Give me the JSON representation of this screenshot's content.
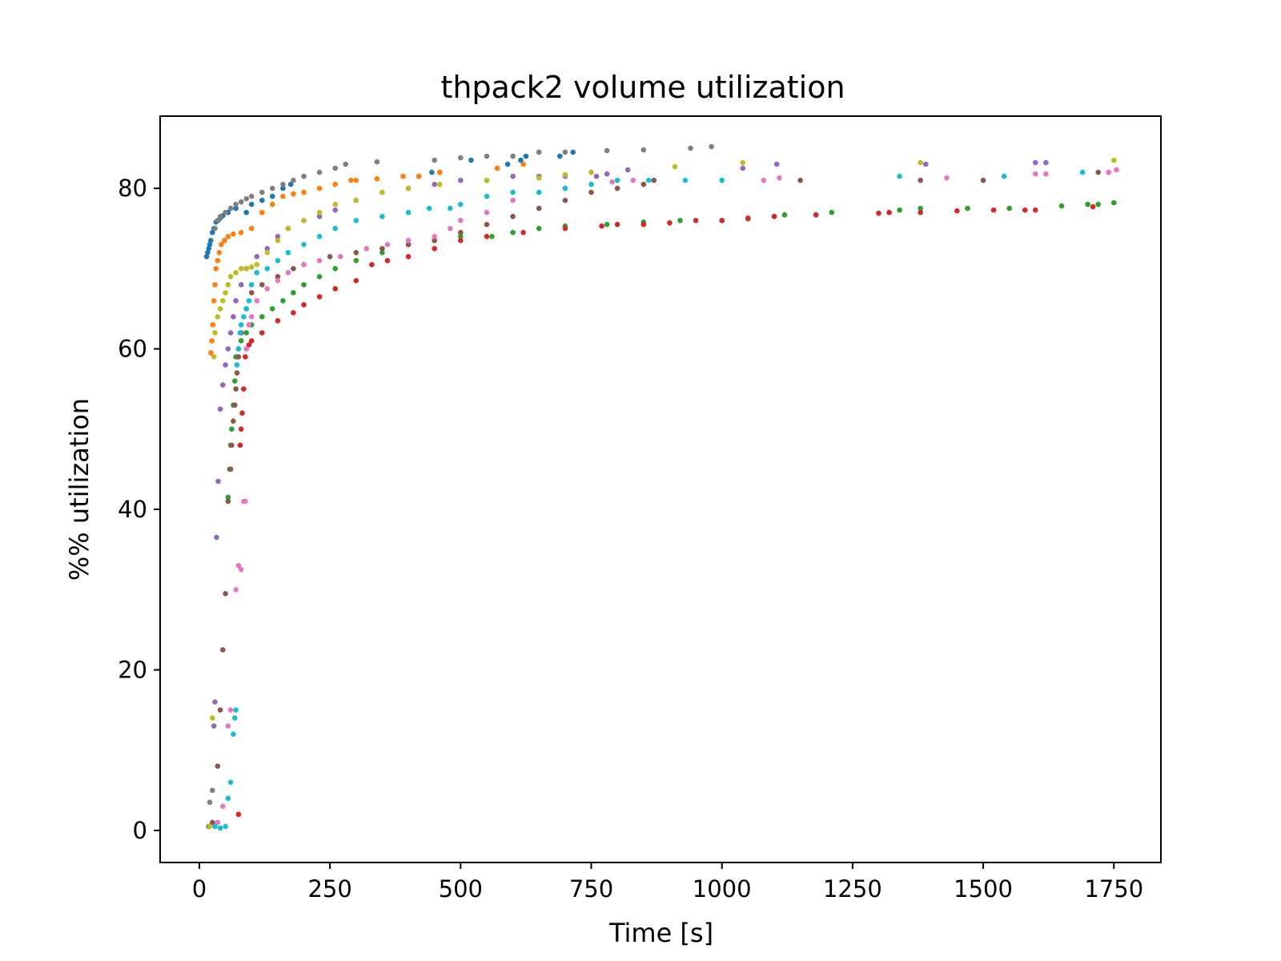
{
  "chart_data": {
    "type": "scatter",
    "title": "thpack2 volume utilization",
    "xlabel": "Time [s]",
    "ylabel": "%% utilization",
    "xlim": [
      -75,
      1840
    ],
    "ylim": [
      -4,
      89
    ],
    "xticks": [
      0,
      250,
      500,
      750,
      1000,
      1250,
      1500,
      1750
    ],
    "yticks": [
      0,
      20,
      40,
      60,
      80
    ],
    "xtick_labels": [
      "0",
      "250",
      "500",
      "750",
      "1000",
      "1250",
      "1500",
      "1750"
    ],
    "ytick_labels": [
      "0",
      "20",
      "40",
      "60",
      "80"
    ],
    "grid": false,
    "legend": "none",
    "series": [
      {
        "color": "#1f77b4",
        "x": [
          14,
          16,
          18,
          20,
          22,
          25,
          28,
          32,
          36,
          40,
          45,
          55,
          70,
          90,
          100,
          120,
          140,
          160,
          175,
          420,
          445,
          460,
          520,
          590,
          615,
          625,
          690,
          715
        ],
        "y": [
          71.5,
          72,
          72.5,
          73,
          73.5,
          74.5,
          75,
          75.8,
          76,
          76.3,
          76.6,
          77,
          77.5,
          77,
          78,
          78.5,
          79,
          80,
          80.5,
          81.5,
          82,
          82,
          83.5,
          83,
          83.5,
          84,
          84,
          84.5
        ]
      },
      {
        "color": "#ff7f0e",
        "x": [
          22,
          24,
          26,
          28,
          30,
          32,
          35,
          38,
          42,
          48,
          55,
          65,
          80,
          100,
          120,
          140,
          160,
          180,
          200,
          230,
          260,
          290,
          300,
          340,
          390,
          420,
          460,
          570,
          620
        ],
        "y": [
          59.5,
          61,
          63,
          66,
          68,
          70,
          71,
          72,
          73,
          73.5,
          74,
          74.3,
          74.5,
          75,
          77,
          78,
          79,
          79.3,
          79.5,
          80,
          80.5,
          81,
          81,
          81.2,
          81.5,
          81.5,
          82,
          82.5,
          83
        ]
      },
      {
        "color": "#2ca02c",
        "x": [
          55,
          58,
          60,
          62,
          65,
          68,
          70,
          75,
          80,
          90,
          100,
          120,
          140,
          160,
          180,
          200,
          230,
          260,
          300,
          350,
          400,
          450,
          500,
          560,
          600,
          650,
          700,
          780,
          850,
          920,
          1000,
          1050,
          1100,
          1120,
          1210,
          1340,
          1380,
          1470,
          1550,
          1650,
          1700,
          1720,
          1750
        ],
        "y": [
          41.5,
          45,
          48,
          50,
          53,
          56,
          59,
          60,
          61,
          62,
          63,
          64,
          65,
          66,
          67,
          68,
          69,
          70,
          71,
          72,
          73,
          73.5,
          74,
          74,
          74.5,
          75,
          75.3,
          75.5,
          75.8,
          76,
          76,
          76.2,
          76.5,
          76.7,
          77,
          77.3,
          77.5,
          77.5,
          77.5,
          77.8,
          78,
          78,
          78.2
        ]
      },
      {
        "color": "#d62728",
        "x": [
          75,
          78,
          80,
          82,
          85,
          88,
          95,
          100,
          120,
          150,
          180,
          200,
          230,
          260,
          300,
          330,
          360,
          400,
          450,
          500,
          550,
          620,
          700,
          770,
          800,
          850,
          900,
          950,
          1000,
          1050,
          1100,
          1180,
          1300,
          1320,
          1380,
          1450,
          1520,
          1580,
          1600,
          1710
        ],
        "y": [
          2,
          48,
          50,
          52,
          55,
          59,
          60.5,
          61,
          62,
          63.5,
          64.5,
          65.5,
          66.5,
          67.5,
          68.5,
          70.5,
          71,
          71.5,
          72.5,
          73.5,
          74,
          74.5,
          75,
          75.3,
          75.5,
          75.5,
          75.7,
          76,
          76,
          76.3,
          76.5,
          76.7,
          76.9,
          77,
          77,
          77.2,
          77.3,
          77.3,
          77.3,
          77.7
        ]
      },
      {
        "color": "#9467bd",
        "x": [
          28,
          30,
          33,
          36,
          40,
          45,
          50,
          55,
          60,
          65,
          70,
          80,
          90,
          110,
          130,
          150,
          170,
          200,
          230,
          260,
          300,
          350,
          400,
          450,
          500,
          550,
          600,
          650,
          700,
          760,
          780,
          820,
          1040,
          1105,
          1390,
          1600,
          1620,
          1740
        ],
        "y": [
          13,
          16,
          36.5,
          43.5,
          52.5,
          55.5,
          58,
          60,
          62,
          64,
          66,
          68,
          70,
          71.5,
          72.5,
          74,
          75,
          76,
          76.5,
          77.3,
          78.5,
          79.5,
          80,
          80.5,
          81,
          81,
          81.5,
          81.5,
          81.5,
          81.5,
          81.8,
          82.3,
          82.5,
          83,
          83,
          83.2,
          83.2,
          82
        ]
      },
      {
        "color": "#8c564b",
        "x": [
          18,
          25,
          35,
          40,
          45,
          50,
          55,
          60,
          62,
          65,
          68,
          70,
          72,
          75,
          80,
          90,
          100,
          120,
          150,
          180,
          200,
          250,
          300,
          350,
          400,
          450,
          500,
          550,
          600,
          650,
          700,
          750,
          800,
          850,
          870,
          1150,
          1380,
          1500,
          1720
        ],
        "y": [
          0.5,
          1,
          8,
          15,
          22.5,
          29.5,
          41,
          45,
          48,
          51,
          53,
          55,
          57,
          59,
          62,
          65,
          67,
          68,
          69,
          70,
          70.5,
          71.5,
          72,
          72.5,
          73,
          73.5,
          74.5,
          75.5,
          76.5,
          77.5,
          78.5,
          79.5,
          80,
          80.5,
          81,
          81,
          81,
          81,
          82
        ]
      },
      {
        "color": "#e377c2",
        "x": [
          30,
          35,
          45,
          55,
          60,
          70,
          75,
          80,
          85,
          88,
          90,
          95,
          100,
          110,
          130,
          150,
          170,
          200,
          230,
          270,
          320,
          360,
          400,
          450,
          480,
          500,
          550,
          600,
          650,
          700,
          750,
          790,
          830,
          1080,
          1110,
          1430,
          1600,
          1620,
          1740,
          1755
        ],
        "y": [
          0.5,
          1,
          3,
          13,
          15,
          30,
          33,
          32.5,
          41,
          41,
          60,
          63,
          64,
          66,
          67.5,
          68.5,
          69.5,
          70.5,
          71,
          71.5,
          72.5,
          73,
          73.5,
          74,
          75,
          76,
          77,
          78.5,
          79.5,
          80,
          80.5,
          80.8,
          81,
          81,
          81.3,
          81.3,
          81.8,
          81.8,
          82,
          82.3
        ]
      },
      {
        "color": "#7f7f7f",
        "x": [
          20,
          25,
          30,
          35,
          40,
          50,
          60,
          70,
          80,
          90,
          100,
          120,
          140,
          160,
          180,
          200,
          230,
          260,
          280,
          340,
          450,
          500,
          550,
          600,
          650,
          700,
          780,
          850,
          940,
          980
        ],
        "y": [
          3.5,
          5,
          75,
          76,
          76.5,
          77,
          77.5,
          78,
          78.3,
          78.7,
          79,
          79.5,
          80,
          80.5,
          81,
          81.5,
          82,
          82.5,
          83,
          83.3,
          83.5,
          83.8,
          84,
          84,
          84.5,
          84.5,
          84.7,
          84.8,
          85,
          85.2
        ]
      },
      {
        "color": "#bcbd22",
        "x": [
          20,
          25,
          28,
          30,
          35,
          40,
          45,
          50,
          55,
          60,
          70,
          80,
          90,
          100,
          110,
          130,
          150,
          170,
          200,
          230,
          260,
          300,
          350,
          400,
          460,
          550,
          650,
          700,
          750,
          910,
          1040,
          1380,
          1750
        ],
        "y": [
          0.5,
          14,
          59,
          62,
          64,
          65,
          66,
          67,
          68,
          69,
          69.5,
          70,
          70,
          70.2,
          70.5,
          72,
          73.5,
          75,
          76,
          77,
          78,
          78.5,
          79.5,
          80,
          80.5,
          81,
          81.3,
          81.7,
          82,
          82.7,
          83.2,
          83.2,
          83.5
        ]
      },
      {
        "color": "#17becf",
        "x": [
          30,
          40,
          50,
          55,
          60,
          65,
          68,
          70,
          72,
          75,
          78,
          80,
          85,
          90,
          95,
          100,
          110,
          130,
          150,
          170,
          200,
          230,
          260,
          300,
          350,
          400,
          440,
          480,
          500,
          550,
          600,
          650,
          700,
          750,
          800,
          860,
          930,
          1000,
          1340,
          1540,
          1690
        ],
        "y": [
          0.5,
          0.3,
          0.5,
          4,
          6,
          12,
          14,
          15,
          58,
          60,
          62,
          63,
          64,
          65,
          66,
          68,
          69.5,
          70,
          71,
          72,
          73,
          74,
          75,
          76,
          76.5,
          77,
          77.5,
          77.5,
          78,
          79,
          79.5,
          79.5,
          80,
          80.5,
          81,
          81,
          81,
          81,
          81.5,
          81.5,
          82
        ]
      }
    ]
  }
}
